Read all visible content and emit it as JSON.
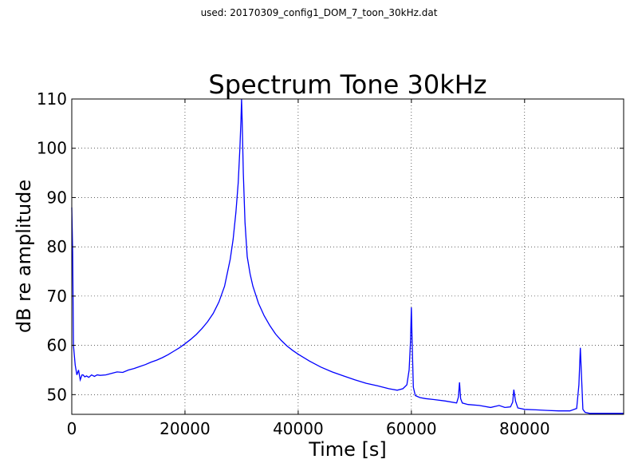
{
  "header": {
    "file_label": "used: 20170309_config1_DOM_7_toon_30kHz.dat"
  },
  "chart_data": {
    "type": "line",
    "title": "Spectrum Tone 30kHz",
    "xlabel": "Time [s]",
    "ylabel": "dB re amplitude",
    "xlim": [
      0,
      97500
    ],
    "ylim": [
      46,
      110
    ],
    "xticks": [
      0,
      20000,
      40000,
      60000,
      80000
    ],
    "yticks": [
      50,
      60,
      70,
      80,
      90,
      100,
      110
    ],
    "grid": true,
    "line_color": "#0000ff",
    "series": [
      {
        "x": [
          0,
          150,
          300,
          450,
          600,
          900,
          1200,
          1500,
          1800,
          2000,
          2300,
          2600,
          3000,
          3500,
          4000,
          4500,
          5000,
          6000,
          7000,
          8000,
          9000,
          10000,
          11000,
          12000,
          13000,
          14000,
          15000,
          16000,
          17000,
          18000,
          19000,
          20000,
          21000,
          22000,
          23000,
          24000,
          25000,
          26000,
          27000,
          28000,
          28500,
          29000,
          29400,
          29700,
          29900,
          30000,
          30100,
          30300,
          30600,
          31000,
          31500,
          32000,
          33000,
          34000,
          35000,
          36000,
          37000,
          38000,
          39000,
          40000,
          42000,
          44000,
          46000,
          48000,
          50000,
          52000,
          54000,
          56000,
          57500,
          58500,
          59200,
          59600,
          59850,
          60000,
          60150,
          60350,
          60700,
          61500,
          62500,
          64000,
          66000,
          68000,
          68300,
          68500,
          68700,
          69000,
          70000,
          72000,
          74000,
          75500,
          76500,
          77500,
          77900,
          78100,
          78400,
          78800,
          80000,
          82000,
          84000,
          86000,
          88000,
          89200,
          89600,
          89850,
          90050,
          90300,
          90700,
          91500,
          93000,
          95000,
          97500
        ],
        "y": [
          88,
          79,
          60,
          58,
          56,
          54,
          55,
          53,
          54,
          54,
          53.6,
          53.8,
          53.5,
          54,
          53.7,
          54,
          53.9,
          54,
          54.3,
          54.6,
          54.5,
          55,
          55.3,
          55.7,
          56.1,
          56.6,
          57,
          57.5,
          58.1,
          58.8,
          59.5,
          60.3,
          61.2,
          62.2,
          63.4,
          64.8,
          66.5,
          68.8,
          72,
          77.5,
          81.5,
          87,
          93,
          100,
          106,
          110,
          106,
          95,
          85,
          78,
          74.5,
          72,
          68.5,
          66,
          64,
          62.3,
          61,
          59.9,
          59,
          58.2,
          56.8,
          55.6,
          54.6,
          53.8,
          53,
          52.3,
          51.8,
          51.2,
          50.9,
          51.2,
          52,
          55,
          61,
          67.7,
          60,
          51.5,
          49.8,
          49.4,
          49.2,
          49,
          48.7,
          48.3,
          49.5,
          52.5,
          49.2,
          48.3,
          48,
          47.8,
          47.4,
          47.8,
          47.4,
          47.5,
          48.5,
          51,
          48.7,
          47.3,
          47,
          46.9,
          46.8,
          46.7,
          46.7,
          47.2,
          52,
          59.5,
          54,
          47,
          46.4,
          46.2,
          46.2,
          46.2,
          46.2
        ]
      }
    ]
  }
}
